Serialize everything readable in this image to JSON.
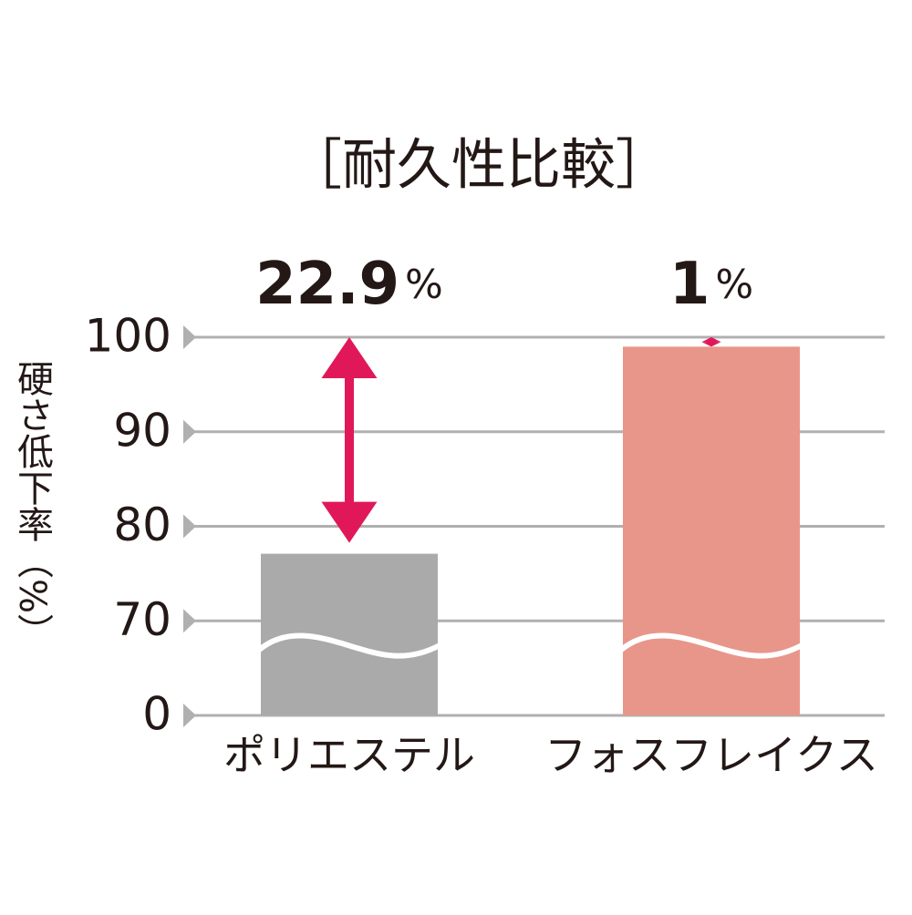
{
  "chart_data": {
    "type": "bar",
    "title": "［耐久性比較］",
    "y_label": "硬さ低下率（%）",
    "categories": [
      "ポリエステル",
      "フォスフレイクス"
    ],
    "series": [
      {
        "name": "硬さ",
        "colors": [
          "#aaaaaa",
          "#e8968a"
        ],
        "values": [
          77.1,
          99.0
        ]
      }
    ],
    "drops": [
      22.9,
      1.0
    ],
    "drop_unit": "%",
    "arrow_color": "#e0185a",
    "ylim": [
      0,
      100
    ],
    "yticks": [
      0,
      70,
      80,
      90,
      100
    ],
    "axis_break": true,
    "grid": true
  }
}
